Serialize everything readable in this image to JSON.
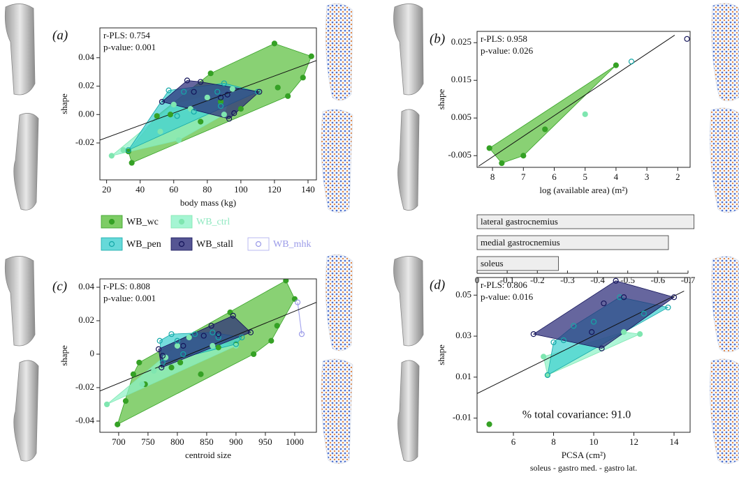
{
  "chart_data": [
    {
      "type": "scatter",
      "panel_label": "(a)",
      "x_label": "body mass (kg)",
      "y_label": "shape",
      "annotations": [
        "r-PLS: 0.754",
        "p-value: 0.001"
      ],
      "xlim": [
        16,
        145
      ],
      "ylim": [
        -0.046,
        0.061
      ],
      "xticks": [
        20,
        40,
        60,
        80,
        100,
        120,
        140
      ],
      "yticks": [
        -0.02,
        {
          "value": 0,
          "label": "0.00"
        },
        0.02,
        0.04
      ],
      "fit": {
        "x": [
          16,
          145
        ],
        "y": [
          -0.018,
          0.038
        ]
      },
      "series": [
        {
          "name": "WB_wc",
          "x": [
            33,
            35,
            50,
            58,
            76,
            82,
            88,
            100,
            120,
            122,
            128,
            137,
            142
          ],
          "values": [
            -0.026,
            -0.034,
            -0.001,
            0.0,
            -0.005,
            0.029,
            0.009,
            0.004,
            0.05,
            0.019,
            0.013,
            0.026,
            0.041
          ]
        },
        {
          "name": "WB_ctrl",
          "x": [
            23,
            30,
            52,
            60,
            63,
            70,
            80,
            90,
            95
          ],
          "values": [
            -0.029,
            -0.025,
            -0.012,
            0.007,
            -0.018,
            0.004,
            0.012,
            0.0,
            0.018
          ]
        },
        {
          "name": "WB_pen",
          "x": [
            33,
            57,
            62,
            66,
            72,
            86,
            88,
            90,
            110
          ],
          "values": [
            -0.025,
            0.017,
            -0.001,
            0.016,
            0.002,
            0.016,
            0.006,
            0.022,
            0.016
          ]
        },
        {
          "name": "WB_stall",
          "x": [
            53,
            68,
            72,
            76,
            88,
            92,
            93,
            96,
            111
          ],
          "values": [
            0.009,
            0.024,
            0.016,
            0.023,
            0.012,
            0.014,
            -0.003,
            0.001,
            0.016
          ]
        }
      ]
    },
    {
      "type": "scatter",
      "panel_label": "(b)",
      "x_label": "log (available area) (m²)",
      "y_label": "shape",
      "annotations": [
        "r-PLS: 0.958",
        "p-value: 0.026"
      ],
      "xlim": [
        8.5,
        1.6
      ],
      "ylim": [
        -0.0081,
        0.028
      ],
      "xticks": [
        8,
        7,
        6,
        5,
        4,
        3,
        2
      ],
      "yticks": [
        -0.005,
        0.005,
        0.015,
        0.025
      ],
      "fit": {
        "x": [
          8.45,
          2.1
        ],
        "y": [
          -0.0078,
          0.027
        ]
      },
      "series": [
        {
          "name": "WB_wc",
          "x": [
            8.1,
            7.7,
            7,
            6.3,
            4
          ],
          "values": [
            -0.003,
            -0.007,
            -0.005,
            0.002,
            0.019
          ]
        },
        {
          "name": "WB_ctrl",
          "x": [
            5
          ],
          "values": [
            0.006
          ]
        },
        {
          "name": "WB_pen",
          "x": [
            3.5
          ],
          "values": [
            0.02
          ]
        },
        {
          "name": "WB_stall",
          "x": [
            1.7
          ],
          "values": [
            0.026
          ]
        }
      ]
    },
    {
      "type": "scatter",
      "panel_label": "(c)",
      "x_label": "centroid size",
      "y_label": "shape",
      "annotations": [
        "r-PLS: 0.808",
        "p-value: 0.001"
      ],
      "xlim": [
        668,
        1037
      ],
      "ylim": [
        -0.0467,
        0.045
      ],
      "xticks": [
        700,
        750,
        800,
        850,
        900,
        950,
        1000
      ],
      "yticks": [
        -0.04,
        -0.02,
        0,
        0.02,
        0.04
      ],
      "fit": {
        "x": [
          668,
          1037
        ],
        "y": [
          -0.022,
          0.031
        ]
      },
      "series": [
        {
          "name": "WB_wc",
          "x": [
            698,
            712,
            725,
            735,
            745,
            790,
            805,
            840,
            870,
            890,
            900,
            930,
            960,
            970,
            985,
            1000
          ],
          "values": [
            -0.042,
            -0.028,
            -0.012,
            -0.005,
            -0.018,
            -0.008,
            -0.005,
            -0.012,
            0.004,
            0.025,
            0.006,
            0.0,
            0.008,
            0.017,
            0.044,
            0.033
          ]
        },
        {
          "name": "WB_ctrl",
          "x": [
            680,
            740,
            760,
            780,
            800,
            820,
            860,
            900
          ],
          "values": [
            -0.03,
            -0.018,
            -0.01,
            -0.002,
            0.005,
            0.01,
            0.005,
            0.005
          ]
        },
        {
          "name": "WB_pen",
          "x": [
            770,
            775,
            790,
            800,
            810,
            830,
            860,
            870,
            900,
            910
          ],
          "values": [
            0.008,
            -0.005,
            0.012,
            0.008,
            0.0,
            0.012,
            0.013,
            0.01,
            0.006,
            0.01
          ]
        },
        {
          "name": "WB_stall",
          "x": [
            768,
            773,
            775,
            810,
            845,
            858,
            870,
            895,
            925
          ],
          "values": [
            0.003,
            -0.008,
            -0.001,
            0.005,
            0.011,
            0.017,
            0.012,
            0.023,
            0.013
          ]
        },
        {
          "name": "WB_mhk",
          "x": [
            1005,
            1012
          ],
          "values": [
            0.031,
            0.012
          ]
        }
      ]
    },
    {
      "type": "scatter",
      "panel_label": "(d)",
      "x_label": "PCSA (cm²)",
      "x_sublabel": "soleus - gastro med. - gastro lat.",
      "y_label": "shape",
      "annotations": [
        "r-PLS: 0.806",
        "p-value: 0.016"
      ],
      "footnote": "% total covariance: 91.0",
      "xlim": [
        4.19,
        14.8
      ],
      "ylim": [
        -0.0169,
        0.0586
      ],
      "xticks": [
        6,
        8,
        10,
        12,
        14
      ],
      "yticks": [
        -0.01,
        0.01,
        0.03,
        0.05
      ],
      "fit": {
        "x": [
          4.19,
          14.5
        ],
        "y": [
          0.002,
          0.052
        ]
      },
      "series": [
        {
          "name": "WB_wc",
          "x": [
            4.8
          ],
          "values": [
            -0.013
          ]
        },
        {
          "name": "WB_ctrl",
          "x": [
            7.5,
            7.7,
            11.5,
            12.3
          ],
          "values": [
            0.02,
            0.011,
            0.032,
            0.031
          ]
        },
        {
          "name": "WB_pen",
          "x": [
            7.7,
            8,
            8.5,
            9,
            10,
            11.3,
            12.5,
            13.7
          ],
          "values": [
            0.011,
            0.027,
            0.028,
            0.035,
            0.037,
            0.049,
            0.041,
            0.044
          ]
        },
        {
          "name": "WB_stall",
          "x": [
            7,
            9.9,
            10.4,
            10.5,
            11.1,
            11.5,
            14
          ],
          "values": [
            0.031,
            0.032,
            0.024,
            0.046,
            0.057,
            0.049,
            0.049
          ]
        }
      ]
    },
    {
      "type": "hbar",
      "categories": [
        "lateral gastrocnemius",
        "medial gastrocnemius",
        "soleus"
      ],
      "values": [
        -0.72,
        -0.635,
        -0.27
      ],
      "color": "#eeeeee",
      "xlim": [
        0,
        -0.7
      ],
      "xticks": [
        0,
        -0.1,
        -0.2,
        -0.3,
        -0.4,
        -0.5,
        -0.6,
        -0.7
      ]
    }
  ],
  "legend": [
    {
      "name": "WB_wc",
      "color": "#5cbf3f",
      "point_color": "#35a125",
      "marker": "filled",
      "text_color": "#111111"
    },
    {
      "name": "WB_ctrl",
      "color": "#8ff2c8",
      "point_color": "#7fe6b0",
      "marker": "filled",
      "text_color": "#8fe8c0"
    },
    {
      "name": "WB_pen",
      "color": "#40d0d0",
      "point_color": "#14a8a8",
      "marker": "open",
      "text_color": "#111111"
    },
    {
      "name": "WB_stall",
      "color": "#2b2b78",
      "point_color": "#14145a",
      "marker": "open",
      "text_color": "#111111"
    },
    {
      "name": "WB_mhk",
      "color": "#a8a8ee",
      "point_color": "#9a9ae8",
      "marker": "open",
      "text_color": "#9a9ae8"
    }
  ]
}
